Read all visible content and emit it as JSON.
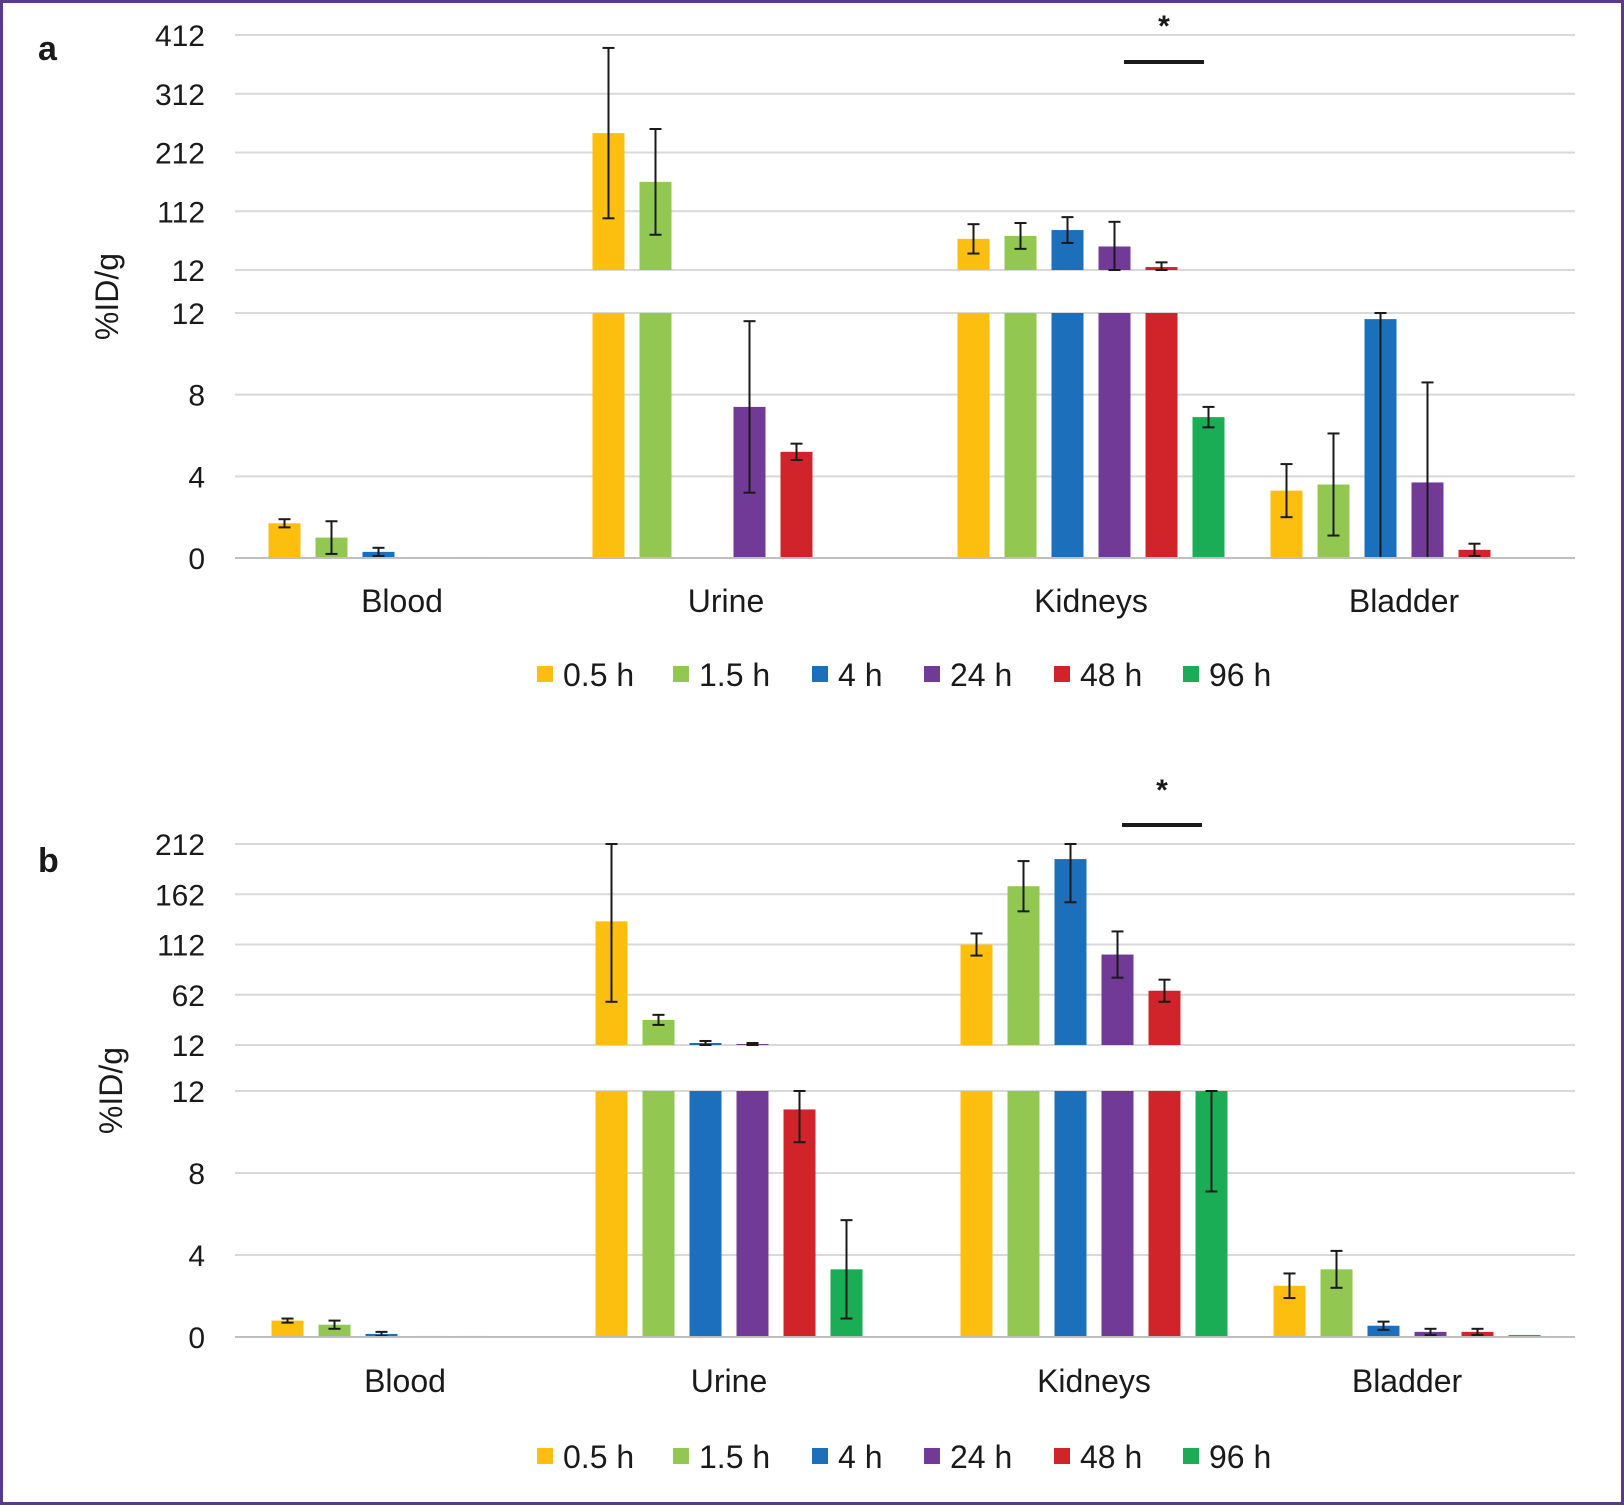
{
  "colors": {
    "0.5 h": "#fcbf0f",
    "1.5 h": "#92c851",
    "4 h": "#1c6fba",
    "24 h": "#713a96",
    "48 h": "#d0232a",
    "96 h": "#1aad56"
  },
  "chart_data": [
    {
      "type": "bar",
      "panel": "a",
      "categories": [
        "Blood",
        "Urine",
        "Kidneys",
        "Bladder"
      ],
      "ylabel": "%ID/g",
      "legend_position": "bottom",
      "grid": true,
      "broken_axis": true,
      "lower_range": [
        0,
        12
      ],
      "lower_ticks": [
        0,
        4,
        8,
        12
      ],
      "upper_range": [
        12,
        412
      ],
      "upper_ticks": [
        "12",
        "112",
        "212",
        "312",
        "412"
      ],
      "significance": {
        "label": "*",
        "category": "Kidneys",
        "between": [
          "48 h",
          "96 h"
        ]
      },
      "series": [
        {
          "name": "0.5 h",
          "values": [
            1.7,
            245,
            65,
            3.3
          ],
          "errors": [
            0.2,
            145,
            25,
            1.3
          ]
        },
        {
          "name": "1.5 h",
          "values": [
            1.0,
            162,
            70,
            3.6
          ],
          "errors": [
            0.8,
            90,
            22,
            2.5
          ]
        },
        {
          "name": "4 h",
          "values": [
            0.3,
            null,
            80,
            11.7
          ],
          "errors": [
            0.2,
            null,
            22,
            11.7
          ]
        },
        {
          "name": "24 h",
          "values": [
            0.05,
            7.4,
            52,
            3.7
          ],
          "errors": [
            0.03,
            4.2,
            42,
            4.9
          ]
        },
        {
          "name": "48 h",
          "values": [
            0.05,
            5.2,
            17,
            0.4
          ],
          "errors": [
            0.02,
            0.4,
            8,
            0.3
          ]
        },
        {
          "name": "96 h",
          "values": [
            null,
            null,
            6.9,
            null
          ],
          "errors": [
            null,
            null,
            0.5,
            null
          ]
        }
      ]
    },
    {
      "type": "bar",
      "panel": "b",
      "categories": [
        "Blood",
        "Urine",
        "Kidneys",
        "Bladder"
      ],
      "ylabel": "%ID/g",
      "legend_position": "bottom",
      "grid": true,
      "broken_axis": true,
      "lower_range": [
        0,
        12
      ],
      "lower_ticks": [
        0,
        4,
        8,
        12
      ],
      "upper_range": [
        12,
        212
      ],
      "upper_ticks": [
        "12",
        "62",
        "112",
        "162",
        "212"
      ],
      "significance": {
        "label": "*",
        "category": "Kidneys",
        "between": [
          "48 h",
          "96 h"
        ]
      },
      "series": [
        {
          "name": "0.5 h",
          "values": [
            0.8,
            135,
            112,
            2.5
          ],
          "errors": [
            0.1,
            80,
            11,
            0.6
          ]
        },
        {
          "name": "1.5 h",
          "values": [
            0.6,
            37,
            170,
            3.3
          ],
          "errors": [
            0.2,
            5,
            25,
            0.9
          ]
        },
        {
          "name": "4 h",
          "values": [
            0.15,
            14,
            197,
            0.55
          ],
          "errors": [
            0.1,
            2,
            43,
            0.2
          ]
        },
        {
          "name": "24 h",
          "values": [
            0.05,
            13,
            102,
            0.25
          ],
          "errors": [
            0.03,
            1,
            23,
            0.15
          ]
        },
        {
          "name": "48 h",
          "values": [
            0.05,
            11.1,
            66,
            0.25
          ],
          "errors": [
            0.02,
            1.6,
            11,
            0.15
          ]
        },
        {
          "name": "96 h",
          "values": [
            0.03,
            3.3,
            12,
            0.1
          ],
          "errors": [
            0.02,
            2.4,
            4.9,
            0.05
          ]
        }
      ]
    }
  ]
}
